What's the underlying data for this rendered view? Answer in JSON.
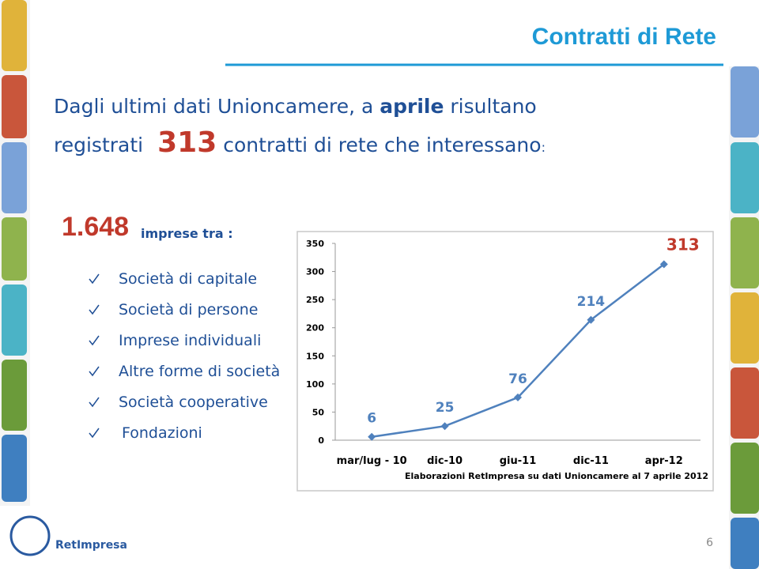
{
  "header": {
    "title": "Contratti di Rete"
  },
  "intro": {
    "line1": [
      "Dagli ultimi dati Unioncamere, a",
      "aprile",
      "risultano"
    ],
    "line2": [
      "registrati",
      "313",
      "contratti di rete che interessano",
      ":"
    ]
  },
  "companies": {
    "number": "1.648",
    "text": "imprese tra :"
  },
  "list": [
    "Società di capitale",
    "Società di persone",
    "Imprese individuali",
    "Altre forme di società",
    "Società cooperative",
    "Fondazioni"
  ],
  "chart_data": {
    "type": "line",
    "categories": [
      "mar/lug - 10",
      "dic-10",
      "giu-11",
      "dic-11",
      "apr-12"
    ],
    "values": [
      6,
      25,
      76,
      214,
      313
    ],
    "color": "#4f81bd",
    "ylim": [
      0,
      350
    ],
    "yticks": [
      0,
      50,
      100,
      150,
      200,
      250,
      300,
      350
    ],
    "caption": "Elaborazioni RetImpresa su dati Unioncamere al 7 aprile 2012"
  },
  "footer": {
    "logo": "RetImpresa",
    "page": "6"
  }
}
